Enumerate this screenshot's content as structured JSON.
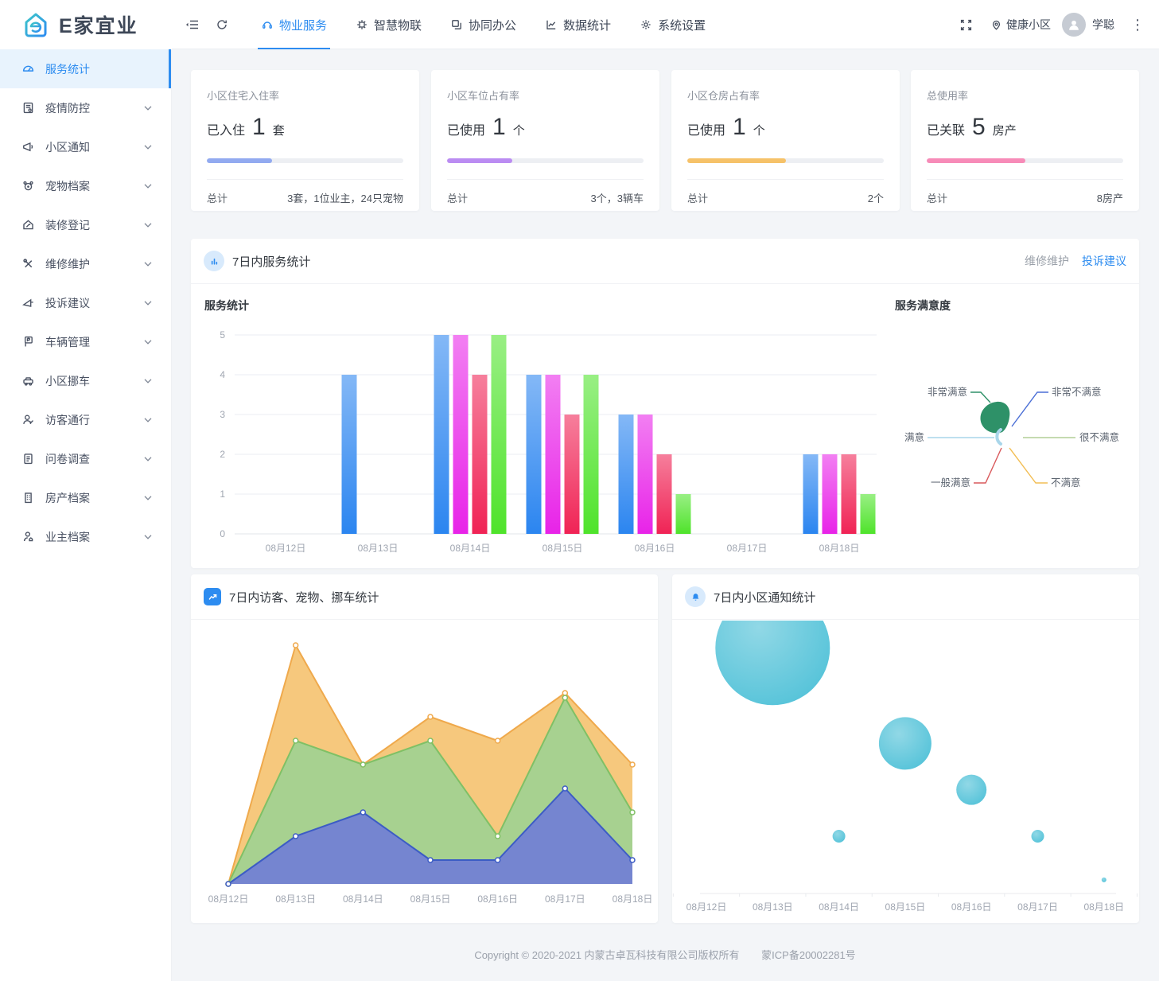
{
  "brand": {
    "name": "E家宜业"
  },
  "topnav": {
    "tabs": [
      {
        "label": "物业服务",
        "active": true
      },
      {
        "label": "智慧物联",
        "active": false
      },
      {
        "label": "协同办公",
        "active": false
      },
      {
        "label": "数据统计",
        "active": false
      },
      {
        "label": "系统设置",
        "active": false
      }
    ],
    "community": "健康小区",
    "user": "学聪"
  },
  "sidebar": {
    "items": [
      {
        "label": "服务统计",
        "active": true,
        "expandable": false
      },
      {
        "label": "疫情防控",
        "active": false,
        "expandable": true
      },
      {
        "label": "小区通知",
        "active": false,
        "expandable": true
      },
      {
        "label": "宠物档案",
        "active": false,
        "expandable": true
      },
      {
        "label": "装修登记",
        "active": false,
        "expandable": true
      },
      {
        "label": "维修维护",
        "active": false,
        "expandable": true
      },
      {
        "label": "投诉建议",
        "active": false,
        "expandable": true
      },
      {
        "label": "车辆管理",
        "active": false,
        "expandable": true
      },
      {
        "label": "小区挪车",
        "active": false,
        "expandable": true
      },
      {
        "label": "访客通行",
        "active": false,
        "expandable": true
      },
      {
        "label": "问卷调查",
        "active": false,
        "expandable": true
      },
      {
        "label": "房产档案",
        "active": false,
        "expandable": true
      },
      {
        "label": "业主档案",
        "active": false,
        "expandable": true
      }
    ]
  },
  "stat_cards": [
    {
      "title": "小区住宅入住率",
      "value_label": "已入住",
      "value": "1",
      "unit": "套",
      "progress": 0.33,
      "color": "#92aaf0",
      "total_label": "总计",
      "total_value": "3套，1位业主，24只宠物"
    },
    {
      "title": "小区车位占有率",
      "value_label": "已使用",
      "value": "1",
      "unit": "个",
      "progress": 0.33,
      "color": "#bb8cf2",
      "total_label": "总计",
      "total_value": "3个，3辆车"
    },
    {
      "title": "小区仓房占有率",
      "value_label": "已使用",
      "value": "1",
      "unit": "个",
      "progress": 0.5,
      "color": "#f6c269",
      "total_label": "总计",
      "total_value": "2个"
    },
    {
      "title": "总使用率",
      "value_label": "已关联",
      "value": "5",
      "unit": "房产",
      "progress": 0.5,
      "color": "#f78bb8",
      "total_label": "总计",
      "total_value": "8房产"
    }
  ],
  "service_panel": {
    "title": "7日内服务统计",
    "links": [
      {
        "label": "维修维护",
        "active": false
      },
      {
        "label": "投诉建议",
        "active": true
      }
    ],
    "bar_title": "服务统计",
    "pie_title": "服务满意度"
  },
  "visits_panel": {
    "title": "7日内访客、宠物、挪车统计"
  },
  "notice_panel": {
    "title": "7日内小区通知统计"
  },
  "footer": {
    "copyright": "Copyright © 2020-2021 内蒙古卓瓦科技有限公司版权所有",
    "icp": "蒙ICP备20002281号"
  },
  "chart_data": [
    {
      "id": "service-bars",
      "type": "bar",
      "title": "服务统计",
      "categories": [
        "08月12日",
        "08月13日",
        "08月14日",
        "08月15日",
        "08月16日",
        "08月17日",
        "08月18日"
      ],
      "series": [
        {
          "name": "series-blue",
          "color": "#2b85f0",
          "values": [
            0,
            4,
            5,
            4,
            3,
            0,
            2
          ]
        },
        {
          "name": "series-magenta",
          "color": "#e823e8",
          "values": [
            0,
            0,
            5,
            4,
            3,
            0,
            2
          ]
        },
        {
          "name": "series-red",
          "color": "#f02355",
          "values": [
            0,
            0,
            4,
            3,
            2,
            0,
            2
          ]
        },
        {
          "name": "series-green",
          "color": "#4fe32b",
          "values": [
            0,
            0,
            5,
            4,
            1,
            0,
            1
          ]
        }
      ],
      "ylim": [
        0,
        5
      ],
      "yticks": [
        0,
        1,
        2,
        3,
        4,
        5
      ],
      "grid": true,
      "legend": "none"
    },
    {
      "id": "satisfaction-pie",
      "type": "pie",
      "title": "服务满意度",
      "slices": [
        {
          "label": "非常满意",
          "color": "#2e9168",
          "share": 0.95
        },
        {
          "label": "满意",
          "color": "#a9d6ea",
          "share": 0.05
        },
        {
          "label": "一般满意",
          "color": "#d9595c",
          "share": 0
        },
        {
          "label": "不满意",
          "color": "#f2be55",
          "share": 0
        },
        {
          "label": "很不满意",
          "color": "#b2ce96",
          "share": 0
        },
        {
          "label": "非常不满意",
          "color": "#4b6fd6",
          "share": 0
        }
      ]
    },
    {
      "id": "visits-area",
      "type": "area",
      "title": "7日内访客、宠物、挪车统计",
      "categories": [
        "08月12日",
        "08月13日",
        "08月14日",
        "08月15日",
        "08月16日",
        "08月17日",
        "08月18日"
      ],
      "series": [
        {
          "name": "橙色系列",
          "line": "#efa94c",
          "fill": "#f6c87d",
          "values": [
            0,
            10,
            5,
            7,
            6,
            8,
            5
          ]
        },
        {
          "name": "绿色系列",
          "line": "#7fc065",
          "fill": "#a7d190",
          "values": [
            0,
            6,
            5,
            6,
            2,
            7.8,
            3
          ]
        },
        {
          "name": "蓝色系列",
          "line": "#3c5cc5",
          "fill": "#7585d0",
          "values": [
            0,
            2,
            3,
            1,
            1,
            4,
            1
          ]
        }
      ],
      "ylim": [
        0,
        10.5
      ],
      "yaxis_hidden": true,
      "legend": "none"
    },
    {
      "id": "notice-bubbles",
      "type": "scatter",
      "title": "7日内小区通知统计",
      "categories": [
        "08月12日",
        "08月13日",
        "08月14日",
        "08月15日",
        "08月16日",
        "08月17日",
        "08月18日"
      ],
      "color": "#55c3d9",
      "points": [
        {
          "category": "08月12日",
          "size": 0,
          "height": 0
        },
        {
          "category": "08月13日",
          "size": 72,
          "height": 0.9
        },
        {
          "category": "08月14日",
          "size": 8,
          "height": 0.21
        },
        {
          "category": "08月15日",
          "size": 33,
          "height": 0.55
        },
        {
          "category": "08月16日",
          "size": 19,
          "height": 0.38
        },
        {
          "category": "08月17日",
          "size": 8,
          "height": 0.21
        },
        {
          "category": "08月18日",
          "size": 3,
          "height": 0.05
        }
      ],
      "note": "bubble sizes/heights estimated from pixels; no numeric labels shown"
    }
  ]
}
